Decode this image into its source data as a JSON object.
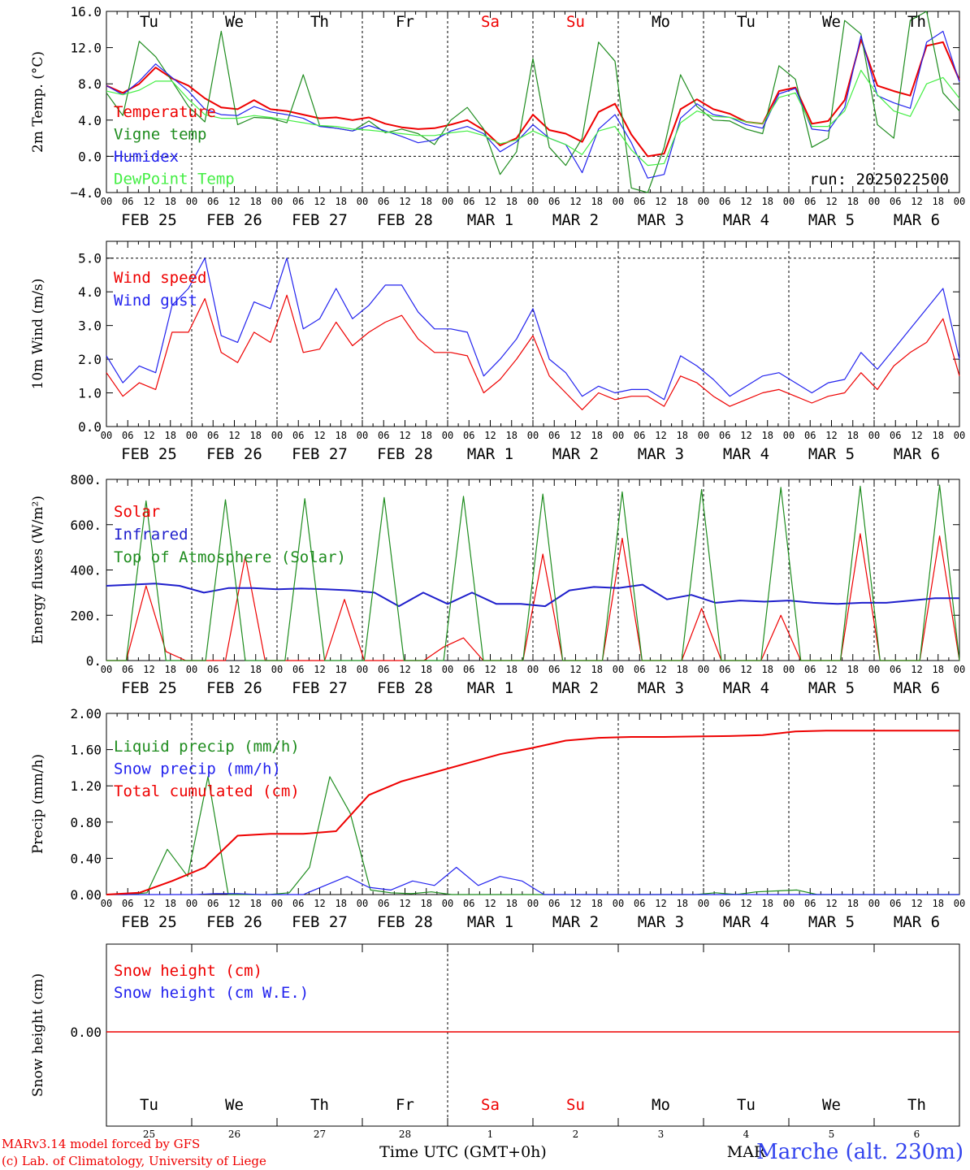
{
  "chart_data": [
    {
      "type": "line",
      "panel": "temperature",
      "ylabel": "2m Temp. (°C)",
      "ylim": [
        -4,
        16
      ],
      "yticks": [
        "−4.0",
        "0.0",
        "4.0",
        "8.0",
        "12.0",
        "16.0"
      ],
      "run_label": "run: 2025022500",
      "legend": [
        "Temperature",
        "Vigne temp",
        "Humidex",
        "DewPoint Temp"
      ],
      "day_labels": [
        "Tu",
        "We",
        "Th",
        "Fr",
        "Sa",
        "Su",
        "Mo",
        "Tu",
        "We",
        "Th"
      ],
      "x_start": "2025-02-25 00 UTC",
      "x_step_hours": 6,
      "series": [
        {
          "name": "Temperature",
          "color": "#ee0000",
          "values": [
            7.8,
            7.0,
            8.0,
            9.8,
            8.6,
            7.8,
            6.4,
            5.4,
            5.2,
            6.2,
            5.2,
            5.0,
            4.6,
            4.2,
            4.3,
            4.0,
            4.3,
            3.6,
            3.2,
            3.0,
            3.1,
            3.5,
            4.0,
            2.9,
            1.2,
            2.0,
            4.6,
            2.9,
            2.5,
            1.6,
            4.9,
            5.8,
            2.4,
            0.0,
            0.3,
            5.2,
            6.3,
            5.2,
            4.7,
            3.8,
            3.6,
            7.2,
            7.6,
            3.6,
            3.9,
            6.2,
            12.9,
            7.8,
            7.2,
            6.7,
            12.2,
            12.6,
            8.4
          ]
        },
        {
          "name": "Vigne temp",
          "color": "#1e8c1e",
          "values": [
            7.0,
            4.5,
            12.7,
            11.0,
            8.3,
            5.5,
            3.8,
            13.8,
            3.5,
            4.3,
            4.2,
            3.7,
            9.0,
            3.4,
            3.1,
            2.8,
            3.9,
            2.6,
            3.0,
            2.5,
            1.3,
            4.0,
            5.4,
            3.0,
            -2.0,
            0.5,
            10.8,
            1.0,
            -1.0,
            2.0,
            12.6,
            10.5,
            -3.5,
            -4.0,
            1.0,
            9.0,
            5.5,
            4.0,
            3.9,
            3.0,
            2.5,
            10.0,
            8.5,
            1.0,
            2.0,
            15.0,
            13.5,
            3.5,
            2.0,
            15.0,
            16.0,
            7.0,
            5.0
          ]
        },
        {
          "name": "Humidex",
          "color": "#2222ee",
          "values": [
            7.8,
            6.8,
            8.3,
            10.2,
            8.7,
            7.2,
            5.2,
            4.6,
            4.5,
            5.5,
            4.9,
            4.6,
            4.2,
            3.3,
            3.1,
            2.8,
            3.4,
            2.8,
            2.2,
            1.5,
            1.8,
            2.8,
            3.3,
            2.5,
            0.5,
            1.6,
            3.5,
            2.0,
            1.3,
            -1.8,
            3.0,
            4.6,
            1.5,
            -2.4,
            -2.0,
            4.2,
            5.8,
            4.6,
            4.3,
            3.5,
            3.1,
            6.9,
            7.5,
            3.0,
            2.8,
            5.4,
            13.3,
            6.7,
            5.9,
            5.3,
            12.6,
            13.8,
            8.2
          ]
        },
        {
          "name": "DewPoint Temp",
          "color": "#44ee44",
          "values": [
            7.2,
            6.8,
            7.3,
            8.3,
            8.3,
            6.3,
            4.6,
            4.2,
            4.2,
            4.5,
            4.3,
            4.0,
            3.7,
            3.4,
            3.3,
            3.0,
            2.9,
            2.7,
            2.5,
            2.3,
            2.3,
            2.6,
            2.8,
            2.3,
            1.4,
            1.8,
            2.8,
            2.0,
            1.3,
            0.2,
            2.8,
            3.3,
            0.7,
            -1.0,
            -0.8,
            3.7,
            5.0,
            4.4,
            4.3,
            3.8,
            3.6,
            6.5,
            7.0,
            3.3,
            3.3,
            5.0,
            9.5,
            6.8,
            5.0,
            4.4,
            8.0,
            8.7,
            6.4
          ]
        }
      ]
    },
    {
      "type": "line",
      "panel": "wind",
      "ylabel": "10m Wind (m/s)",
      "ylim": [
        0,
        5.5
      ],
      "yticks": [
        "0.0",
        "1.0",
        "2.0",
        "3.0",
        "4.0",
        "5.0"
      ],
      "legend": [
        "Wind speed",
        "Wind gust"
      ],
      "x_start": "2025-02-25 00 UTC",
      "x_step_hours": 6,
      "series": [
        {
          "name": "Wind speed",
          "color": "#ee0000",
          "values": [
            1.6,
            0.9,
            1.3,
            1.1,
            2.8,
            2.8,
            3.8,
            2.2,
            1.9,
            2.8,
            2.5,
            3.9,
            2.2,
            2.3,
            3.1,
            2.4,
            2.8,
            3.1,
            3.3,
            2.6,
            2.2,
            2.2,
            2.1,
            1.0,
            1.4,
            2.0,
            2.7,
            1.5,
            1.0,
            0.5,
            1.0,
            0.8,
            0.9,
            0.9,
            0.6,
            1.5,
            1.3,
            0.9,
            0.6,
            0.8,
            1.0,
            1.1,
            0.9,
            0.7,
            0.9,
            1.0,
            1.6,
            1.1,
            1.8,
            2.2,
            2.5,
            3.2,
            1.5
          ]
        },
        {
          "name": "Wind gust",
          "color": "#2222ee",
          "values": [
            2.1,
            1.3,
            1.8,
            1.6,
            3.6,
            4.1,
            5.0,
            2.7,
            2.5,
            3.7,
            3.5,
            5.0,
            2.9,
            3.2,
            4.1,
            3.2,
            3.6,
            4.2,
            4.2,
            3.4,
            2.9,
            2.9,
            2.8,
            1.5,
            2.0,
            2.6,
            3.5,
            2.0,
            1.6,
            0.9,
            1.2,
            1.0,
            1.1,
            1.1,
            0.8,
            2.1,
            1.8,
            1.4,
            0.9,
            1.2,
            1.5,
            1.6,
            1.3,
            1.0,
            1.3,
            1.4,
            2.2,
            1.7,
            2.3,
            2.9,
            3.5,
            4.1,
            2.0
          ]
        }
      ]
    },
    {
      "type": "line",
      "panel": "energy",
      "ylabel": "Energy fluxes (W/m²)",
      "ylim": [
        0,
        800
      ],
      "yticks": [
        "0.",
        "200.",
        "400.",
        "600.",
        "800."
      ],
      "legend": [
        "Solar",
        "Infrared",
        "Top of Atmosphere (Solar)"
      ],
      "x_start": "2025-02-25 00 UTC",
      "x_step_hours": 6,
      "series": [
        {
          "name": "Solar",
          "color": "#ee0000",
          "values": [
            0,
            0,
            330,
            40,
            0,
            0,
            0,
            460,
            0,
            0,
            0,
            0,
            270,
            0,
            0,
            0,
            0,
            60,
            100,
            0,
            0,
            0,
            470,
            0,
            0,
            0,
            540,
            0,
            0,
            0,
            230,
            0,
            0,
            0,
            200,
            0,
            0,
            0,
            560,
            0,
            0,
            0,
            550,
            0
          ]
        },
        {
          "name": "Infrared",
          "color": "#1f1fcc",
          "values": [
            330,
            335,
            340,
            330,
            300,
            320,
            320,
            315,
            318,
            315,
            310,
            300,
            240,
            300,
            250,
            300,
            250,
            250,
            240,
            310,
            325,
            320,
            335,
            270,
            290,
            255,
            265,
            260,
            265,
            255,
            250,
            255,
            255,
            265,
            275,
            275
          ]
        },
        {
          "name": "Top of Atmosphere (Solar)",
          "color": "#1e8c1e",
          "values": [
            0,
            0,
            705,
            0,
            0,
            0,
            710,
            0,
            0,
            0,
            715,
            0,
            0,
            0,
            720,
            0,
            0,
            0,
            725,
            0,
            0,
            0,
            735,
            0,
            0,
            0,
            745,
            0,
            0,
            0,
            755,
            0,
            0,
            0,
            765,
            0,
            0,
            0,
            770,
            0,
            0,
            0,
            775,
            0
          ]
        }
      ]
    },
    {
      "type": "line",
      "panel": "precip",
      "ylabel": "Precip (mm/h)",
      "ylim": [
        0,
        2
      ],
      "yticks": [
        "0.00",
        "0.40",
        "0.80",
        "1.20",
        "1.60",
        "2.00"
      ],
      "legend": [
        "Liquid precip (mm/h)",
        "Snow precip (mm/h)",
        "Total cumulated (cm)"
      ],
      "x_start": "2025-02-25 00 UTC",
      "x_step_hours": 6,
      "series": [
        {
          "name": "Liquid precip (mm/h)",
          "color": "#1e8c1e",
          "values": [
            0,
            0,
            0.02,
            0.5,
            0.2,
            1.3,
            0,
            0,
            0,
            0.02,
            0.3,
            1.3,
            0.9,
            0.05,
            0.02,
            0.01,
            0.03,
            0,
            0,
            0,
            0,
            0,
            0,
            0,
            0,
            0,
            0,
            0,
            0,
            0,
            0.02,
            0,
            0.03,
            0.04,
            0.05,
            0,
            0,
            0,
            0,
            0,
            0,
            0,
            0
          ]
        },
        {
          "name": "Snow precip (mm/h)",
          "color": "#2222ee",
          "values": [
            0,
            0,
            0,
            0,
            0,
            0.01,
            0.01,
            0,
            0,
            0,
            0.1,
            0.2,
            0.08,
            0.05,
            0.15,
            0.1,
            0.3,
            0.1,
            0.2,
            0.15,
            0,
            0,
            0,
            0,
            0,
            0,
            0,
            0,
            0,
            0,
            0,
            0,
            0,
            0,
            0,
            0,
            0,
            0,
            0,
            0
          ]
        },
        {
          "name": "Total cumulated (cm)",
          "color": "#ee0000",
          "values": [
            0,
            0.02,
            0.15,
            0.3,
            0.65,
            0.67,
            0.67,
            0.7,
            1.1,
            1.25,
            1.35,
            1.45,
            1.55,
            1.62,
            1.7,
            1.73,
            1.74,
            1.74,
            1.745,
            1.75,
            1.76,
            1.8,
            1.81,
            1.81,
            1.81,
            1.81,
            1.81
          ]
        }
      ]
    },
    {
      "type": "line",
      "panel": "snow",
      "ylabel": "Snow height (cm)",
      "ytick": "0.00",
      "legend": [
        "Snow height (cm)",
        "Snow height (cm W.E.)"
      ],
      "day_labels": [
        "Tu",
        "We",
        "Th",
        "Fr",
        "Sa",
        "Su",
        "Mo",
        "Tu",
        "We",
        "Th"
      ],
      "day_numbers": [
        "25",
        "26",
        "27",
        "28",
        "1",
        "2",
        "3",
        "4",
        "5",
        "6"
      ],
      "month_label": "MAR",
      "xlabel": "Time UTC (GMT+0h)",
      "series": [
        {
          "name": "Snow height (cm)",
          "color": "#ee0000",
          "values": [
            0,
            0
          ]
        }
      ]
    }
  ],
  "axis": {
    "hour_labels": [
      "00",
      "06",
      "12",
      "18"
    ],
    "date_labels": [
      "FEB 25",
      "FEB 26",
      "FEB 27",
      "FEB 28",
      "MAR  1",
      "MAR  2",
      "MAR  3",
      "MAR  4",
      "MAR  5",
      "MAR  6"
    ],
    "weekend_days": [
      4,
      5
    ],
    "weekend_color": "#ee0000"
  },
  "footer": {
    "model": "MARv3.14 model forced by GFS",
    "credit": "(c) Lab. of Climatology, University of Liege",
    "station": "Marche (alt. 230m)"
  }
}
